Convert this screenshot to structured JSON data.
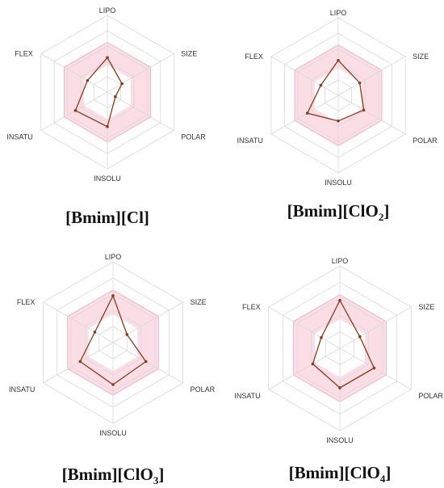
{
  "colors": {
    "grid": "#d9d9d9",
    "optimal_band_fill": "#fbdde6",
    "optimal_band_stroke": "#f0a8bf",
    "series": "#8b3a1a",
    "title": "#111111"
  },
  "chart_data": [
    {
      "type": "radar",
      "title": "[Bmim][Cl]",
      "title_subscript": "",
      "axes": [
        "LIPO",
        "SIZE",
        "POLAR",
        "INSOLU",
        "INSATU",
        "FLEX"
      ],
      "rmax": 10,
      "grid_levels": [
        2,
        4,
        6,
        8,
        10
      ],
      "optimal_band": [
        3.5,
        6.5
      ],
      "series": [
        {
          "values": [
            4.5,
            2.2,
            1.2,
            4.5,
            4.8,
            3.0
          ]
        }
      ]
    },
    {
      "type": "radar",
      "title": "[Bmim][ClO",
      "title_subscript": "2",
      "title_suffix": "]",
      "axes": [
        "LIPO",
        "SIZE",
        "POLAR",
        "INSOLU",
        "INSATU",
        "FLEX"
      ],
      "rmax": 10,
      "grid_levels": [
        2,
        4,
        6,
        8,
        10
      ],
      "optimal_band": [
        3.5,
        6.5
      ],
      "series": [
        {
          "values": [
            4.5,
            3.2,
            3.8,
            3.3,
            4.6,
            2.6
          ]
        }
      ]
    },
    {
      "type": "radar",
      "title": "[Bmim][ClO",
      "title_subscript": "3",
      "title_suffix": "]",
      "axes": [
        "LIPO",
        "SIZE",
        "POLAR",
        "INSOLU",
        "INSATU",
        "FLEX"
      ],
      "rmax": 10,
      "grid_levels": [
        2,
        4,
        6,
        8,
        10
      ],
      "optimal_band": [
        3.5,
        6.5
      ],
      "series": [
        {
          "values": [
            5.8,
            2.0,
            4.7,
            5.2,
            4.7,
            2.6
          ]
        }
      ]
    },
    {
      "type": "radar",
      "title": "[Bmim][ClO",
      "title_subscript": "4",
      "title_suffix": "]",
      "axes": [
        "LIPO",
        "SIZE",
        "POLAR",
        "INSOLU",
        "INSATU",
        "FLEX"
      ],
      "rmax": 10,
      "grid_levels": [
        2,
        4,
        6,
        8,
        10
      ],
      "optimal_band": [
        3.5,
        6.5
      ],
      "series": [
        {
          "values": [
            5.8,
            2.8,
            4.8,
            4.8,
            3.8,
            2.6
          ]
        }
      ]
    }
  ]
}
